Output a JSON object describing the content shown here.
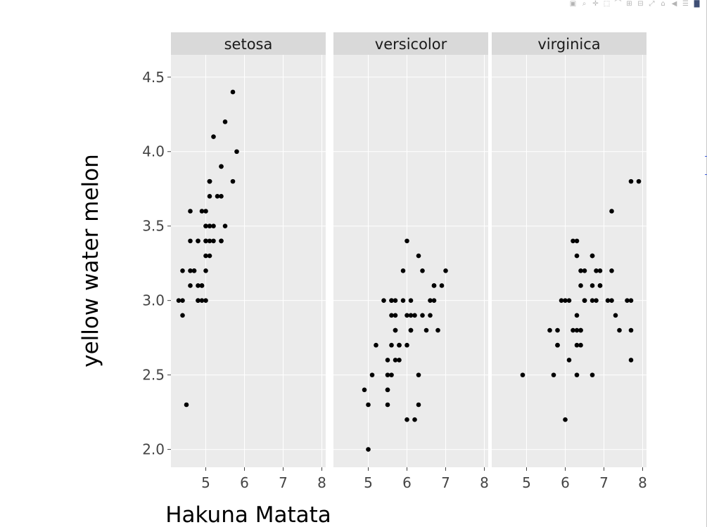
{
  "modebar": {
    "buttons": [
      {
        "name": "camera-icon",
        "glyph": "▣"
      },
      {
        "name": "zoom-icon",
        "glyph": "⌕"
      },
      {
        "name": "pan-icon",
        "glyph": "✛"
      },
      {
        "name": "box-select-icon",
        "glyph": "⬚"
      },
      {
        "name": "lasso-icon",
        "glyph": "⌒"
      },
      {
        "name": "zoom-in-icon",
        "glyph": "⊞"
      },
      {
        "name": "zoom-out-icon",
        "glyph": "⊟"
      },
      {
        "name": "autoscale-icon",
        "glyph": "⤢"
      },
      {
        "name": "home-icon",
        "glyph": "⌂"
      },
      {
        "name": "hover-closest-icon",
        "glyph": "◀"
      },
      {
        "name": "hover-compare-icon",
        "glyph": "☰"
      },
      {
        "name": "plotly-logo-icon",
        "glyph": "▇"
      }
    ]
  },
  "chart_data": {
    "type": "scatter",
    "xlabel": "Hakuna Matata",
    "ylabel": "yellow water melon",
    "xlim": [
      4.1,
      8.1
    ],
    "ylim": [
      1.88,
      4.65
    ],
    "xticks": [
      5,
      6,
      7,
      8
    ],
    "yticks": [
      2.0,
      2.5,
      3.0,
      3.5,
      4.0,
      4.5
    ],
    "ytick_labels": [
      "2.0",
      "2.5",
      "3.0",
      "3.5",
      "4.0",
      "4.5"
    ],
    "grid": true,
    "point_color": "#000000",
    "panel_background": "#ebebeb",
    "strip_background": "#d9d9d9",
    "panels": [
      {
        "title": "setosa",
        "points": [
          [
            5.1,
            3.5
          ],
          [
            4.9,
            3.0
          ],
          [
            4.7,
            3.2
          ],
          [
            4.6,
            3.1
          ],
          [
            5.0,
            3.6
          ],
          [
            5.4,
            3.9
          ],
          [
            4.6,
            3.4
          ],
          [
            5.0,
            3.4
          ],
          [
            4.4,
            2.9
          ],
          [
            4.9,
            3.1
          ],
          [
            5.4,
            3.7
          ],
          [
            4.8,
            3.4
          ],
          [
            4.8,
            3.0
          ],
          [
            4.3,
            3.0
          ],
          [
            5.8,
            4.0
          ],
          [
            5.7,
            4.4
          ],
          [
            5.4,
            3.9
          ],
          [
            5.1,
            3.5
          ],
          [
            5.7,
            3.8
          ],
          [
            5.1,
            3.8
          ],
          [
            5.4,
            3.4
          ],
          [
            5.1,
            3.7
          ],
          [
            4.6,
            3.6
          ],
          [
            5.1,
            3.3
          ],
          [
            4.8,
            3.4
          ],
          [
            5.0,
            3.0
          ],
          [
            5.0,
            3.4
          ],
          [
            5.2,
            3.5
          ],
          [
            5.2,
            3.4
          ],
          [
            4.7,
            3.2
          ],
          [
            4.8,
            3.1
          ],
          [
            5.4,
            3.4
          ],
          [
            5.2,
            4.1
          ],
          [
            5.5,
            4.2
          ],
          [
            4.9,
            3.1
          ],
          [
            5.0,
            3.2
          ],
          [
            5.5,
            3.5
          ],
          [
            4.9,
            3.6
          ],
          [
            4.4,
            3.0
          ],
          [
            5.1,
            3.4
          ],
          [
            5.0,
            3.5
          ],
          [
            4.5,
            2.3
          ],
          [
            4.4,
            3.2
          ],
          [
            5.0,
            3.5
          ],
          [
            5.1,
            3.8
          ],
          [
            4.8,
            3.0
          ],
          [
            5.1,
            3.8
          ],
          [
            4.6,
            3.2
          ],
          [
            5.3,
            3.7
          ],
          [
            5.0,
            3.3
          ]
        ]
      },
      {
        "title": "versicolor",
        "points": [
          [
            7.0,
            3.2
          ],
          [
            6.4,
            3.2
          ],
          [
            6.9,
            3.1
          ],
          [
            5.5,
            2.3
          ],
          [
            6.5,
            2.8
          ],
          [
            5.7,
            2.8
          ],
          [
            6.3,
            3.3
          ],
          [
            4.9,
            2.4
          ],
          [
            6.6,
            2.9
          ],
          [
            5.2,
            2.7
          ],
          [
            5.0,
            2.0
          ],
          [
            5.9,
            3.0
          ],
          [
            6.0,
            2.2
          ],
          [
            6.1,
            2.9
          ],
          [
            5.6,
            2.9
          ],
          [
            6.7,
            3.1
          ],
          [
            5.6,
            3.0
          ],
          [
            5.8,
            2.7
          ],
          [
            6.2,
            2.2
          ],
          [
            5.6,
            2.5
          ],
          [
            5.9,
            3.2
          ],
          [
            6.1,
            2.8
          ],
          [
            6.3,
            2.5
          ],
          [
            6.1,
            2.8
          ],
          [
            6.4,
            2.9
          ],
          [
            6.6,
            3.0
          ],
          [
            6.8,
            2.8
          ],
          [
            6.7,
            3.0
          ],
          [
            6.0,
            2.9
          ],
          [
            5.7,
            2.6
          ],
          [
            5.5,
            2.4
          ],
          [
            5.5,
            2.4
          ],
          [
            5.8,
            2.7
          ],
          [
            6.0,
            2.7
          ],
          [
            5.4,
            3.0
          ],
          [
            6.0,
            3.4
          ],
          [
            6.7,
            3.1
          ],
          [
            6.3,
            2.3
          ],
          [
            5.6,
            3.0
          ],
          [
            5.5,
            2.5
          ],
          [
            5.5,
            2.6
          ],
          [
            6.1,
            3.0
          ],
          [
            5.8,
            2.6
          ],
          [
            5.0,
            2.3
          ],
          [
            5.6,
            2.7
          ],
          [
            5.7,
            3.0
          ],
          [
            5.7,
            2.9
          ],
          [
            6.2,
            2.9
          ],
          [
            5.1,
            2.5
          ],
          [
            5.7,
            2.8
          ]
        ]
      },
      {
        "title": "virginica",
        "points": [
          [
            6.3,
            3.3
          ],
          [
            5.8,
            2.7
          ],
          [
            7.1,
            3.0
          ],
          [
            6.3,
            2.9
          ],
          [
            6.5,
            3.0
          ],
          [
            7.6,
            3.0
          ],
          [
            4.9,
            2.5
          ],
          [
            7.3,
            2.9
          ],
          [
            6.7,
            2.5
          ],
          [
            7.2,
            3.6
          ],
          [
            6.5,
            3.2
          ],
          [
            6.4,
            2.7
          ],
          [
            6.8,
            3.0
          ],
          [
            5.7,
            2.5
          ],
          [
            5.8,
            2.8
          ],
          [
            6.4,
            3.2
          ],
          [
            6.5,
            3.0
          ],
          [
            7.7,
            3.8
          ],
          [
            7.7,
            2.6
          ],
          [
            6.0,
            2.2
          ],
          [
            6.9,
            3.2
          ],
          [
            5.6,
            2.8
          ],
          [
            7.7,
            2.8
          ],
          [
            6.3,
            2.7
          ],
          [
            6.7,
            3.3
          ],
          [
            7.2,
            3.2
          ],
          [
            6.2,
            2.8
          ],
          [
            6.1,
            3.0
          ],
          [
            6.4,
            2.8
          ],
          [
            7.2,
            3.0
          ],
          [
            7.4,
            2.8
          ],
          [
            7.9,
            3.8
          ],
          [
            6.4,
            2.8
          ],
          [
            6.3,
            2.8
          ],
          [
            6.1,
            2.6
          ],
          [
            7.7,
            3.0
          ],
          [
            6.3,
            3.4
          ],
          [
            6.4,
            3.1
          ],
          [
            6.0,
            3.0
          ],
          [
            6.9,
            3.1
          ],
          [
            6.7,
            3.1
          ],
          [
            6.9,
            3.1
          ],
          [
            5.8,
            2.7
          ],
          [
            6.8,
            3.2
          ],
          [
            6.7,
            3.3
          ],
          [
            6.7,
            3.0
          ],
          [
            6.3,
            2.5
          ],
          [
            6.5,
            3.0
          ],
          [
            6.2,
            3.4
          ],
          [
            5.9,
            3.0
          ]
        ]
      }
    ]
  }
}
